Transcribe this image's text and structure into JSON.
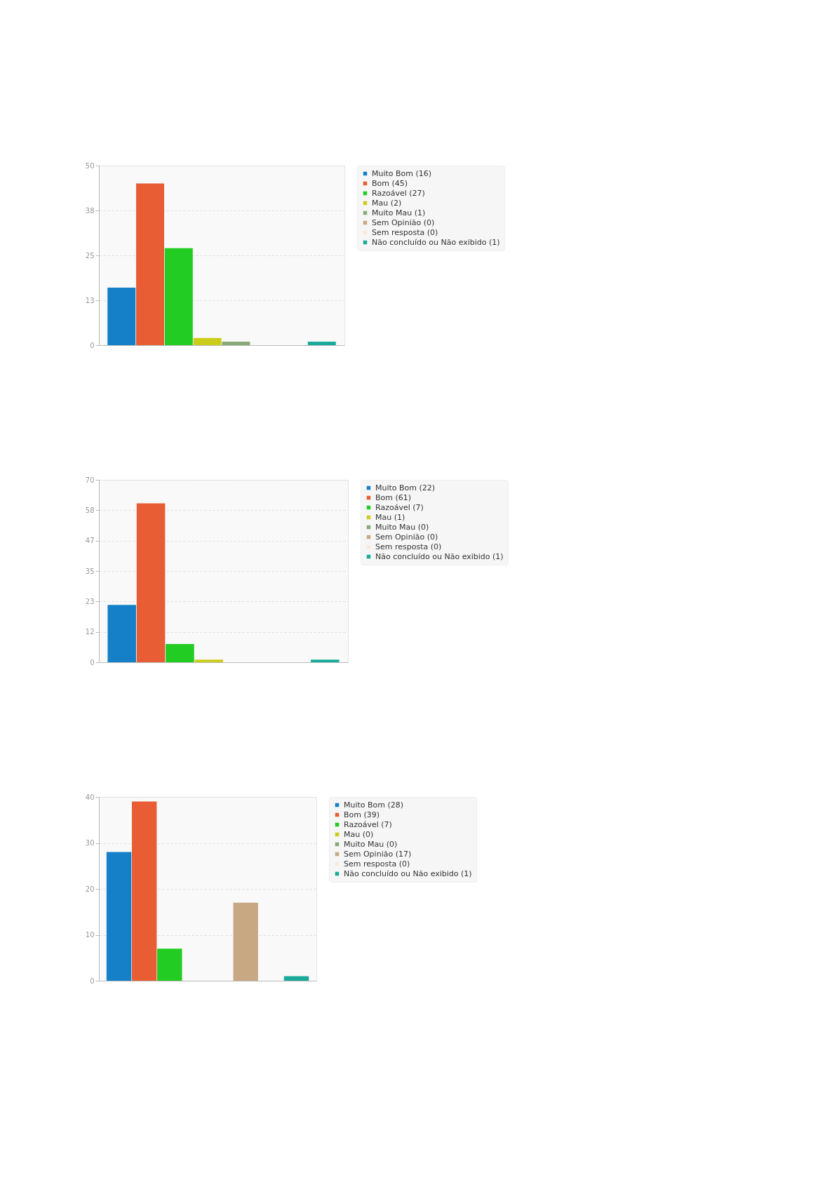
{
  "chart_data": [
    {
      "type": "bar",
      "categories": [
        null,
        null,
        null,
        null,
        null,
        null,
        null,
        null
      ],
      "series": [
        {
          "name": "Muito Bom (16)",
          "color": "#1580c8",
          "values": [
            16,
            null,
            null,
            null,
            null,
            null,
            null,
            null
          ]
        },
        {
          "name": "Bom (45)",
          "color": "#e85d34",
          "values": [
            null,
            45,
            null,
            null,
            null,
            null,
            null,
            null
          ]
        },
        {
          "name": "Razoável (27)",
          "color": "#22cc22",
          "values": [
            null,
            null,
            27,
            null,
            null,
            null,
            null,
            null
          ]
        },
        {
          "name": "Mau (2)",
          "color": "#cccc1a",
          "values": [
            null,
            null,
            null,
            2,
            null,
            null,
            null,
            null
          ]
        },
        {
          "name": "Muito Mau (1)",
          "color": "#88aa77",
          "values": [
            null,
            null,
            null,
            null,
            1,
            null,
            null,
            null
          ]
        },
        {
          "name": "Sem Opinião (0)",
          "color": "#c8a882",
          "values": [
            null,
            null,
            null,
            null,
            null,
            0,
            null,
            null
          ]
        },
        {
          "name": "Sem resposta (0)",
          "color": "#fde8d8",
          "values": [
            null,
            null,
            null,
            null,
            null,
            null,
            0,
            null
          ]
        },
        {
          "name": "Não concluído ou Não exibido (1)",
          "color": "#1aaa9a",
          "values": [
            null,
            null,
            null,
            null,
            null,
            null,
            null,
            1
          ]
        }
      ],
      "ylim": [
        0,
        50
      ],
      "yticks": [
        0,
        {
          "value": 12.5,
          "label": "13"
        },
        25,
        {
          "value": 37.5,
          "label": "38"
        },
        50
      ],
      "grid": "y",
      "legend": "top right",
      "tick_labels": "y"
    },
    {
      "type": "bar",
      "categories": [
        null,
        null,
        null,
        null,
        null,
        null,
        null,
        null
      ],
      "series": [
        {
          "name": "Muito Bom (22)",
          "color": "#1580c8",
          "values": [
            22,
            null,
            null,
            null,
            null,
            null,
            null,
            null
          ]
        },
        {
          "name": "Bom (61)",
          "color": "#e85d34",
          "values": [
            null,
            61,
            null,
            null,
            null,
            null,
            null,
            null
          ]
        },
        {
          "name": "Razoável (7)",
          "color": "#22cc22",
          "values": [
            null,
            null,
            7,
            null,
            null,
            null,
            null,
            null
          ]
        },
        {
          "name": "Mau (1)",
          "color": "#cccc1a",
          "values": [
            null,
            null,
            null,
            1,
            null,
            null,
            null,
            null
          ]
        },
        {
          "name": "Muito Mau (0)",
          "color": "#88aa77",
          "values": [
            null,
            null,
            null,
            null,
            0,
            null,
            null,
            null
          ]
        },
        {
          "name": "Sem Opinião (0)",
          "color": "#c8a882",
          "values": [
            null,
            null,
            null,
            null,
            null,
            0,
            null,
            null
          ]
        },
        {
          "name": "Sem resposta (0)",
          "color": "#fde8d8",
          "values": [
            null,
            null,
            null,
            null,
            null,
            null,
            0,
            null
          ]
        },
        {
          "name": "Não concluído ou Não exibido (1)",
          "color": "#1aaa9a",
          "values": [
            null,
            null,
            null,
            null,
            null,
            null,
            null,
            1
          ]
        }
      ],
      "ylim": [
        0,
        70
      ],
      "yticks": [
        0,
        {
          "value": 11.667,
          "label": "12"
        },
        {
          "value": 23.333,
          "label": "23"
        },
        35,
        {
          "value": 46.667,
          "label": "47"
        },
        {
          "value": 58.333,
          "label": "58"
        },
        70
      ],
      "grid": "y",
      "legend": "top right",
      "tick_labels": "y"
    },
    {
      "type": "bar",
      "categories": [
        null,
        null,
        null,
        null,
        null,
        null,
        null,
        null
      ],
      "series": [
        {
          "name": "Muito Bom (28)",
          "color": "#1580c8",
          "values": [
            28,
            null,
            null,
            null,
            null,
            null,
            null,
            null
          ]
        },
        {
          "name": "Bom (39)",
          "color": "#e85d34",
          "values": [
            null,
            39,
            null,
            null,
            null,
            null,
            null,
            null
          ]
        },
        {
          "name": "Razoável (7)",
          "color": "#22cc22",
          "values": [
            null,
            null,
            7,
            null,
            null,
            null,
            null,
            null
          ]
        },
        {
          "name": "Mau (0)",
          "color": "#cccc1a",
          "values": [
            null,
            null,
            null,
            0,
            null,
            null,
            null,
            null
          ]
        },
        {
          "name": "Muito Mau (0)",
          "color": "#88aa77",
          "values": [
            null,
            null,
            null,
            null,
            0,
            null,
            null,
            null
          ]
        },
        {
          "name": "Sem Opinião (17)",
          "color": "#c8a882",
          "values": [
            null,
            null,
            null,
            null,
            null,
            17,
            null,
            null
          ]
        },
        {
          "name": "Sem resposta (0)",
          "color": "#fde8d8",
          "values": [
            null,
            null,
            null,
            null,
            null,
            null,
            0,
            null
          ]
        },
        {
          "name": "Não concluído ou Não exibido (1)",
          "color": "#1aaa9a",
          "values": [
            null,
            null,
            null,
            null,
            null,
            null,
            null,
            1
          ]
        }
      ],
      "ylim": [
        0,
        40
      ],
      "yticks": [
        0,
        10,
        20,
        30,
        40
      ],
      "grid": "y",
      "legend": "top right",
      "tick_labels": "y"
    }
  ]
}
